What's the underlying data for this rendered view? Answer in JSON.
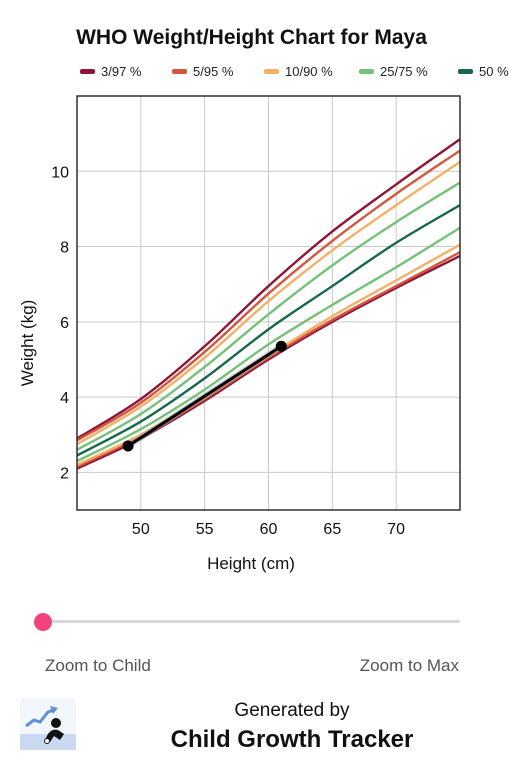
{
  "chart_data": {
    "type": "line",
    "title": "WHO Weight/Height Chart for Maya",
    "xlabel": "Height (cm)",
    "ylabel": "Weight (kg)",
    "xlim": [
      45,
      75
    ],
    "ylim": [
      1,
      12
    ],
    "x_ticks": [
      50,
      55,
      60,
      65,
      70
    ],
    "y_ticks": [
      2,
      4,
      6,
      8,
      10
    ],
    "grid": true,
    "legend_position": "top",
    "legend": [
      {
        "label": "3/97 %",
        "color": "#8e1538"
      },
      {
        "label": "5/95 %",
        "color": "#d4563f"
      },
      {
        "label": "10/90 %",
        "color": "#f4b066"
      },
      {
        "label": "25/75 %",
        "color": "#76c17a"
      },
      {
        "label": "50 %",
        "color": "#17684a"
      }
    ],
    "series": [
      {
        "name": "3/97 %",
        "color": "#8e1538",
        "x": [
          45,
          50,
          55,
          60,
          65,
          70,
          75
        ],
        "y": [
          2.1,
          2.9,
          3.9,
          5.0,
          6.0,
          6.9,
          7.75
        ]
      },
      {
        "name": "3/97 %",
        "color": "#8e1538",
        "x": [
          45,
          50,
          55,
          60,
          65,
          70,
          75
        ],
        "y": [
          2.9,
          3.95,
          5.35,
          6.95,
          8.4,
          9.65,
          10.85
        ]
      },
      {
        "name": "5/95 %",
        "color": "#d4563f",
        "x": [
          45,
          50,
          55,
          60,
          65,
          70,
          75
        ],
        "y": [
          2.15,
          2.95,
          3.95,
          5.05,
          6.05,
          6.95,
          7.85
        ]
      },
      {
        "name": "5/95 %",
        "color": "#d4563f",
        "x": [
          45,
          50,
          55,
          60,
          65,
          70,
          75
        ],
        "y": [
          2.85,
          3.85,
          5.2,
          6.75,
          8.15,
          9.4,
          10.55
        ]
      },
      {
        "name": "10/90 %",
        "color": "#f4b066",
        "x": [
          45,
          50,
          55,
          60,
          65,
          70,
          75
        ],
        "y": [
          2.2,
          3.0,
          4.0,
          5.1,
          6.15,
          7.1,
          8.05
        ]
      },
      {
        "name": "10/90 %",
        "color": "#f4b066",
        "x": [
          45,
          50,
          55,
          60,
          65,
          70,
          75
        ],
        "y": [
          2.75,
          3.75,
          5.05,
          6.55,
          7.9,
          9.1,
          10.25
        ]
      },
      {
        "name": "25/75 %",
        "color": "#76c17a",
        "x": [
          45,
          50,
          55,
          60,
          65,
          70,
          75
        ],
        "y": [
          2.3,
          3.15,
          4.2,
          5.4,
          6.45,
          7.45,
          8.5
        ]
      },
      {
        "name": "25/75 %",
        "color": "#76c17a",
        "x": [
          45,
          50,
          55,
          60,
          65,
          70,
          75
        ],
        "y": [
          2.6,
          3.55,
          4.8,
          6.2,
          7.5,
          8.65,
          9.7
        ]
      },
      {
        "name": "50 %",
        "color": "#17684a",
        "x": [
          45,
          50,
          55,
          60,
          65,
          70,
          75
        ],
        "y": [
          2.45,
          3.35,
          4.5,
          5.8,
          6.95,
          8.1,
          9.1
        ]
      }
    ],
    "child": {
      "color": "#000000",
      "points": [
        {
          "x": 49,
          "y": 2.7
        },
        {
          "x": 61,
          "y": 5.35
        }
      ]
    }
  },
  "slider": {
    "value": 0,
    "min_label": "Zoom to Child",
    "max_label": "Zoom to Max",
    "accent": "#f0447c"
  },
  "footer": {
    "caption": "Generated by",
    "app_name": "Child Growth Tracker",
    "logo_icon": "baby-growth-chart-icon"
  }
}
